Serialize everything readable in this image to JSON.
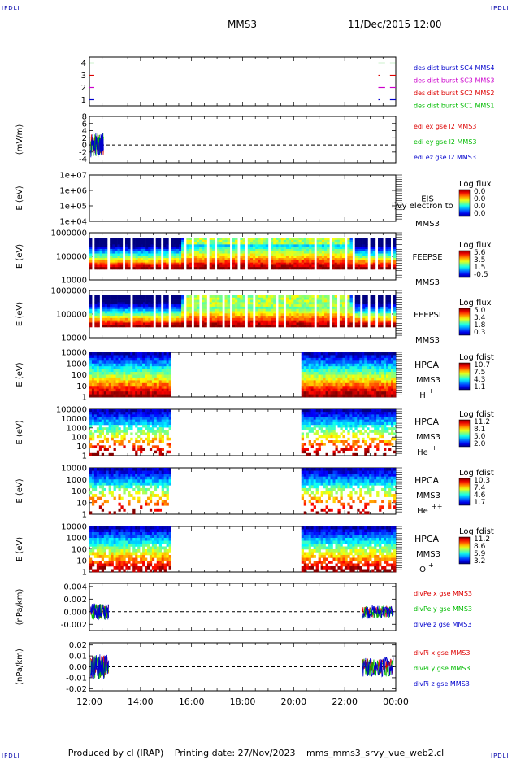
{
  "header": {
    "corner_label": "IPDLI",
    "spacecraft": "MMS3",
    "date": "11/Dec/2015 12:00"
  },
  "footer": {
    "producer": "Produced by cl (IRAP)",
    "printing_date": "Printing date: 27/Nov/2023",
    "file": "mms_mms3_srvy_vue_web2.cl"
  },
  "colors": {
    "red": "#dd0000",
    "green": "#00bb00",
    "blue": "#0000cc",
    "magenta": "#cc00cc"
  },
  "chart_data": [
    {
      "id": "burst",
      "type": "line",
      "ylim": [
        0.5,
        4.5
      ],
      "y_ticks": [
        "4",
        "3",
        "2",
        "1"
      ],
      "ylabel": "",
      "series": [
        {
          "name": "des dist burst SC1 MMS1",
          "y": 4,
          "color": "#00bb00",
          "intervals": [
            [
              0,
              0.5
            ],
            [
              29.8,
              30.5
            ],
            [
              31.0,
              31.6
            ]
          ]
        },
        {
          "name": "des dist burst SC2 MMS2",
          "y": 3,
          "color": "#dd0000",
          "intervals": [
            [
              0,
              0.5
            ],
            [
              29.8,
              30.0
            ],
            [
              31.0,
              31.6
            ]
          ]
        },
        {
          "name": "des dist burst SC3 MMS3",
          "y": 2,
          "color": "#cc00cc",
          "intervals": [
            [
              0,
              0.5
            ],
            [
              29.8,
              30.5
            ],
            [
              31.0,
              31.6
            ]
          ]
        },
        {
          "name": "des dist burst SC4 MMS4",
          "y": 1,
          "color": "#0000cc",
          "intervals": [
            [
              0,
              0.5
            ],
            [
              29.8,
              30.0
            ],
            [
              31.0,
              31.6
            ]
          ]
        }
      ],
      "legend_colors": [
        "#0000cc",
        "#cc00cc",
        "#dd0000",
        "#00bb00"
      ]
    },
    {
      "id": "edi",
      "type": "line",
      "ylabel": "(mV/m)",
      "y_ticks": [
        "8",
        "6",
        "4",
        "2",
        "0",
        "-2",
        "-4"
      ],
      "ylim": [
        -5,
        8
      ],
      "series": [
        {
          "name": "edi ex gse l2 MMS3",
          "color": "#dd0000"
        },
        {
          "name": "edi ey gse l2 MMS3",
          "color": "#00bb00"
        },
        {
          "name": "edi ez gse l2 MMS3",
          "color": "#0000cc"
        }
      ]
    },
    {
      "id": "eis",
      "type": "heatmap",
      "ylabel": "E (eV)",
      "y_ticks": [
        "1e+07",
        "1e+06",
        "1e+05",
        "1e+04"
      ],
      "label_lines": [
        "EIS"
      ],
      "instrument_extra": "l)vy electron to",
      "spacecraft": "MMS3",
      "colorbar_title": "Log flux",
      "colorbar_ticks": [
        "0.0",
        "0.0",
        "0.0",
        "0.0"
      ]
    },
    {
      "id": "feepse",
      "type": "heatmap",
      "ylabel": "E (eV)",
      "y_ticks": [
        "1000000",
        "100000",
        "10000"
      ],
      "label_lines": [
        "FEEPSE"
      ],
      "spacecraft": "MMS3",
      "colorbar_title": "Log flux",
      "colorbar_ticks": [
        "5.6",
        "3.5",
        "1.5",
        "-0.5"
      ]
    },
    {
      "id": "feepsi",
      "type": "heatmap",
      "ylabel": "E (eV)",
      "y_ticks": [
        "1000000",
        "100000",
        "10000"
      ],
      "label_lines": [
        "FEEPSI"
      ],
      "spacecraft": "MMS3",
      "colorbar_title": "Log flux",
      "colorbar_ticks": [
        "5.0",
        "3.4",
        "1.8",
        "0.3"
      ]
    },
    {
      "id": "hpca_h",
      "type": "heatmap",
      "ylabel": "E (eV)",
      "y_ticks": [
        "10000",
        "1000",
        "100",
        "10",
        "1"
      ],
      "label_lines": [
        "HPCA",
        "MMS3"
      ],
      "species": "H",
      "species_charge": "+",
      "colorbar_title": "Log fdist",
      "colorbar_ticks": [
        "10.7",
        "7.5",
        "4.3",
        "1.1"
      ],
      "data_intervals": [
        [
          0,
          3.2
        ],
        [
          8.3,
          12.0
        ]
      ]
    },
    {
      "id": "hpca_he",
      "type": "heatmap",
      "ylabel": "E (eV)",
      "y_ticks": [
        "100000",
        "10000",
        "1000",
        "100",
        "10",
        "1"
      ],
      "label_lines": [
        "HPCA",
        "MMS3"
      ],
      "species": "He",
      "species_charge": "+",
      "colorbar_title": "Log fdist",
      "colorbar_ticks": [
        "11.2",
        "8.1",
        "5.0",
        "2.0"
      ],
      "data_intervals": [
        [
          0,
          3.2
        ],
        [
          8.3,
          12.0
        ]
      ]
    },
    {
      "id": "hpca_hepp",
      "type": "heatmap",
      "ylabel": "E (eV)",
      "y_ticks": [
        "10000",
        "1000",
        "100",
        "10",
        "1"
      ],
      "label_lines": [
        "HPCA",
        "MMS3"
      ],
      "species": "He",
      "species_charge": "++",
      "colorbar_title": "Log fdist",
      "colorbar_ticks": [
        "10.3",
        "7.4",
        "4.6",
        "1.7"
      ],
      "data_intervals": [
        [
          0,
          3.2
        ],
        [
          8.3,
          12.0
        ]
      ]
    },
    {
      "id": "hpca_o",
      "type": "heatmap",
      "ylabel": "E (eV)",
      "y_ticks": [
        "10000",
        "1000",
        "100",
        "10",
        "1"
      ],
      "label_lines": [
        "HPCA",
        "MMS3"
      ],
      "species": "O",
      "species_charge": "+",
      "colorbar_title": "Log fdist",
      "colorbar_ticks": [
        "11.2",
        "8.6",
        "5.9",
        "3.2"
      ],
      "data_intervals": [
        [
          0,
          3.2
        ],
        [
          8.3,
          12.0
        ]
      ]
    },
    {
      "id": "divpe",
      "type": "line",
      "ylabel": "(nPa/km)",
      "y_ticks": [
        "0.004",
        "0.002",
        "0.000",
        "-0.002"
      ],
      "ylim": [
        -0.003,
        0.0045
      ],
      "series": [
        {
          "name": "divPe x gse MMS3",
          "color": "#dd0000"
        },
        {
          "name": "divPe y gse MMS3",
          "color": "#00bb00"
        },
        {
          "name": "divPe z gse MMS3",
          "color": "#0000cc"
        }
      ]
    },
    {
      "id": "divpi",
      "type": "line",
      "ylabel": "(nPa/km)",
      "y_ticks": [
        "0.02",
        "0.01",
        "0.00",
        "-0.01",
        "-0.02"
      ],
      "ylim": [
        -0.022,
        0.022
      ],
      "series": [
        {
          "name": "divPi x gse MMS3",
          "color": "#dd0000"
        },
        {
          "name": "divPi y gse MMS3",
          "color": "#00bb00"
        },
        {
          "name": "divPi z gse MMS3",
          "color": "#0000cc"
        }
      ]
    }
  ],
  "x_axis": {
    "ticks": [
      "12:00",
      "14:00",
      "16:00",
      "18:00",
      "20:00",
      "22:00",
      "00:00"
    ],
    "range_hours": [
      0,
      12
    ]
  }
}
